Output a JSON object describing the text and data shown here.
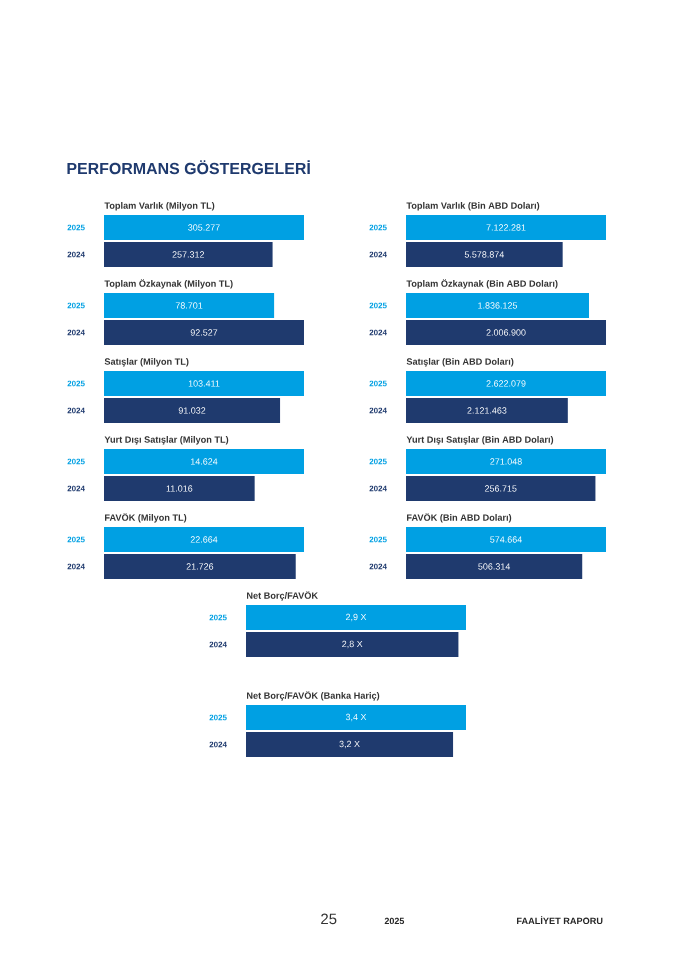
{
  "chart_data": [
    {
      "type": "bar",
      "orientation": "horizontal",
      "title": "Toplam Varlık (Milyon TL)",
      "categories": [
        "2025",
        "2024"
      ],
      "values": [
        305277,
        257312
      ],
      "value_labels": [
        "305.277",
        "257.312"
      ],
      "colors": [
        "#00a0e3",
        "#1f3a6e"
      ],
      "annotations": [
        "PERFORMANS GÖSTERGELERİ"
      ]
    },
    {
      "type": "bar",
      "orientation": "horizontal",
      "title": "Toplam Varlık (Bin ABD Doları)",
      "categories": [
        "2025",
        "2024"
      ],
      "values": [
        7122281,
        5578874
      ],
      "value_labels": [
        "7.122.281",
        "5.578.874"
      ],
      "colors": [
        "#00a0e3",
        "#1f3a6e"
      ]
    },
    {
      "type": "bar",
      "orientation": "horizontal",
      "title": "Toplam Özkaynak (Milyon TL)",
      "categories": [
        "2025",
        "2024"
      ],
      "values": [
        78701,
        92527
      ],
      "value_labels": [
        "78.701",
        "92.527"
      ],
      "colors": [
        "#00a0e3",
        "#1f3a6e"
      ]
    },
    {
      "type": "bar",
      "orientation": "horizontal",
      "title": "Toplam Özkaynak (Bin ABD Doları)",
      "categories": [
        "2025",
        "2024"
      ],
      "values": [
        1836125,
        2006900
      ],
      "value_labels": [
        "1.836.125",
        "2.006.900"
      ],
      "colors": [
        "#00a0e3",
        "#1f3a6e"
      ]
    },
    {
      "type": "bar",
      "orientation": "horizontal",
      "title": "Satışlar (Milyon TL)",
      "categories": [
        "2025",
        "2024"
      ],
      "values": [
        103411,
        91032
      ],
      "value_labels": [
        "103.411",
        "91.032"
      ],
      "colors": [
        "#00a0e3",
        "#1f3a6e"
      ]
    },
    {
      "type": "bar",
      "orientation": "horizontal",
      "title": "Satışlar (Bin ABD Doları)",
      "categories": [
        "2025",
        "2024"
      ],
      "values": [
        2622079,
        2121463
      ],
      "value_labels": [
        "2.622.079",
        "2.121.463"
      ],
      "colors": [
        "#00a0e3",
        "#1f3a6e"
      ]
    },
    {
      "type": "bar",
      "orientation": "horizontal",
      "title": "Yurt Dışı Satışlar (Milyon TL)",
      "categories": [
        "2025",
        "2024"
      ],
      "values": [
        14624,
        11016
      ],
      "value_labels": [
        "14.624",
        "11.016"
      ],
      "colors": [
        "#00a0e3",
        "#1f3a6e"
      ]
    },
    {
      "type": "bar",
      "orientation": "horizontal",
      "title": "Yurt Dışı Satışlar (Bin ABD Doları)",
      "categories": [
        "2025",
        "2024"
      ],
      "values": [
        271048,
        256715
      ],
      "value_labels": [
        "271.048",
        "256.715"
      ],
      "colors": [
        "#00a0e3",
        "#1f3a6e"
      ]
    },
    {
      "type": "bar",
      "orientation": "horizontal",
      "title": "FAVÖK (Milyon TL)",
      "categories": [
        "2025",
        "2024"
      ],
      "values": [
        22664,
        21726
      ],
      "value_labels": [
        "22.664",
        "21.726"
      ],
      "colors": [
        "#00a0e3",
        "#1f3a6e"
      ]
    },
    {
      "type": "bar",
      "orientation": "horizontal",
      "title": "FAVÖK (Bin ABD Doları)",
      "categories": [
        "2025",
        "2024"
      ],
      "values": [
        574664,
        506314
      ],
      "value_labels": [
        "574.664",
        "506.314"
      ],
      "colors": [
        "#00a0e3",
        "#1f3a6e"
      ]
    },
    {
      "type": "bar",
      "orientation": "horizontal",
      "title": "Net Borç/FAVÖK",
      "categories": [
        "2025",
        "2024"
      ],
      "values": [
        2.9,
        2.8
      ],
      "value_labels": [
        "2,9 X",
        "2,8 X"
      ],
      "colors": [
        "#00a0e3",
        "#1f3a6e"
      ]
    },
    {
      "type": "bar",
      "orientation": "horizontal",
      "title": "Net Borç/FAVÖK (Banka Hariç)",
      "categories": [
        "2025",
        "2024"
      ],
      "values": [
        3.4,
        3.2
      ],
      "value_labels": [
        "3,4 X",
        "3,2 X"
      ],
      "colors": [
        "#00a0e3",
        "#1f3a6e"
      ],
      "annotations": [
        "25",
        "2025",
        "FAALİYET RAPORU"
      ]
    }
  ]
}
